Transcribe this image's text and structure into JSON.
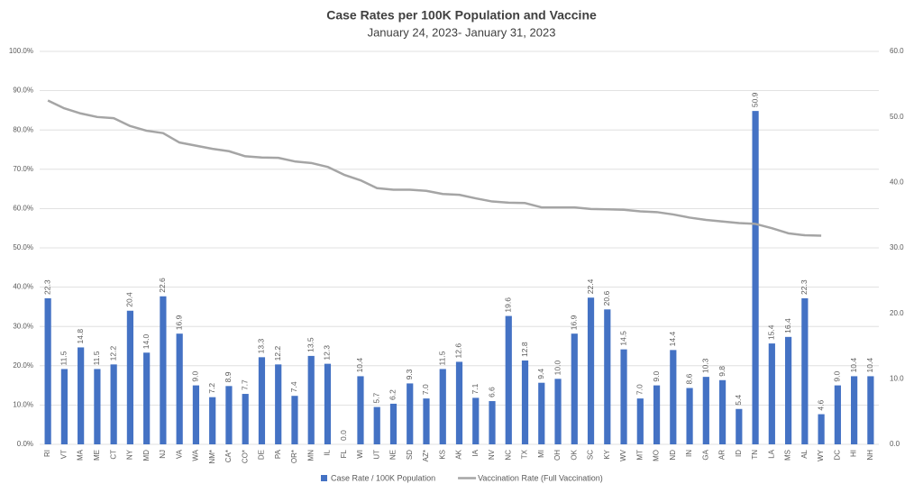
{
  "chart_data": {
    "type": "bar-line",
    "title": "Case Rates per 100K Population and Vaccine",
    "subtitle": "January 24, 2023- January 31, 2023",
    "categories": [
      "RI",
      "VT",
      "MA",
      "ME",
      "CT",
      "NY",
      "MD",
      "NJ",
      "VA",
      "WA",
      "NM*",
      "CA*",
      "CO*",
      "DE",
      "PA",
      "OR*",
      "MN",
      "IL",
      "FL",
      "WI",
      "UT",
      "NE",
      "SD",
      "AZ*",
      "KS",
      "AK",
      "IA",
      "NV",
      "NC",
      "TX",
      "MI",
      "OH",
      "OK",
      "SC",
      "KY",
      "WV",
      "MT",
      "MO",
      "ND",
      "IN",
      "GA",
      "AR",
      "ID",
      "TN",
      "LA",
      "MS",
      "AL",
      "WY",
      "DC",
      "HI",
      "NH"
    ],
    "series": [
      {
        "name": "Case Rate / 100K Population",
        "color": "#4472c4",
        "axis": "y2",
        "type": "bar",
        "values": [
          22.3,
          11.5,
          14.8,
          11.5,
          12.2,
          20.4,
          14.0,
          22.6,
          16.9,
          9.0,
          7.2,
          8.9,
          7.7,
          13.3,
          12.2,
          7.4,
          13.5,
          12.3,
          0.0,
          10.4,
          5.7,
          6.2,
          9.3,
          7.0,
          11.5,
          12.6,
          7.1,
          6.6,
          19.6,
          12.8,
          9.4,
          10.0,
          16.9,
          22.4,
          20.6,
          14.5,
          7.0,
          9.0,
          14.4,
          8.6,
          10.3,
          9.8,
          5.4,
          50.9,
          15.4,
          16.4,
          22.3,
          4.6,
          9.0,
          10.4,
          10.4
        ],
        "value_labels": [
          "22.3",
          "11.5",
          "14.8",
          "11.5",
          "12.2",
          "20.4",
          "14.0",
          "22.6",
          "16.9",
          "9.0",
          "7.2",
          "8.9",
          "7.7",
          "13.3",
          "12.2",
          "7.4",
          "13.5",
          "12.3",
          "0.0",
          "10.4",
          "5.7",
          "6.2",
          "9.3",
          "7.0",
          "11.5",
          "12.6",
          "7.1",
          "6.6",
          "19.6",
          "12.8",
          "9.4",
          "10.0",
          "16.9",
          "22.4",
          "20.6",
          "14.5",
          "7.0",
          "9.0",
          "14.4",
          "8.6",
          "10.3",
          "9.8",
          "5.4",
          "50.9",
          "15.4",
          "16.4",
          "22.3",
          "4.6",
          "9.0",
          "10.4",
          "10.4"
        ]
      },
      {
        "name": "Vaccination Rate (Full Vaccination)",
        "color": "#a5a5a5",
        "axis": "y",
        "type": "line",
        "values": [
          87.5,
          85.5,
          84.2,
          83.3,
          83.0,
          81.0,
          79.8,
          79.2,
          76.8,
          76.0,
          75.2,
          74.6,
          73.3,
          73.0,
          72.9,
          72.0,
          71.6,
          70.6,
          68.6,
          67.2,
          65.2,
          64.8,
          64.8,
          64.5,
          63.7,
          63.5,
          62.6,
          61.8,
          61.5,
          61.4,
          60.3,
          60.3,
          60.3,
          59.9,
          59.8,
          59.7,
          59.3,
          59.1,
          58.5,
          57.7,
          57.1,
          56.7,
          56.3,
          56.1,
          55.0,
          53.7,
          53.2,
          53.1,
          null,
          null,
          null
        ]
      }
    ],
    "ylim": [
      0,
      100
    ],
    "yticks": [
      {
        "value": 0,
        "label": "0.0%"
      },
      {
        "value": 10,
        "label": "10.0%"
      },
      {
        "value": 20,
        "label": "20.0%"
      },
      {
        "value": 30,
        "label": "30.0%"
      },
      {
        "value": 40,
        "label": "40.0%"
      },
      {
        "value": 50,
        "label": "50.0%"
      },
      {
        "value": 60,
        "label": "60.0%"
      },
      {
        "value": 70,
        "label": "70.0%"
      },
      {
        "value": 80,
        "label": "80.0%"
      },
      {
        "value": 90,
        "label": "90.0%"
      },
      {
        "value": 100,
        "label": "100.0%"
      }
    ],
    "y2lim": [
      0,
      60
    ],
    "y2ticks": [
      {
        "value": 0,
        "label": "0.0"
      },
      {
        "value": 10,
        "label": "10.0"
      },
      {
        "value": 20,
        "label": "20.0"
      },
      {
        "value": 30,
        "label": "30.0"
      },
      {
        "value": 40,
        "label": "40.0"
      },
      {
        "value": 50,
        "label": "50.0"
      },
      {
        "value": 60,
        "label": "60.0"
      }
    ],
    "grid": true,
    "legend": "bottom"
  }
}
